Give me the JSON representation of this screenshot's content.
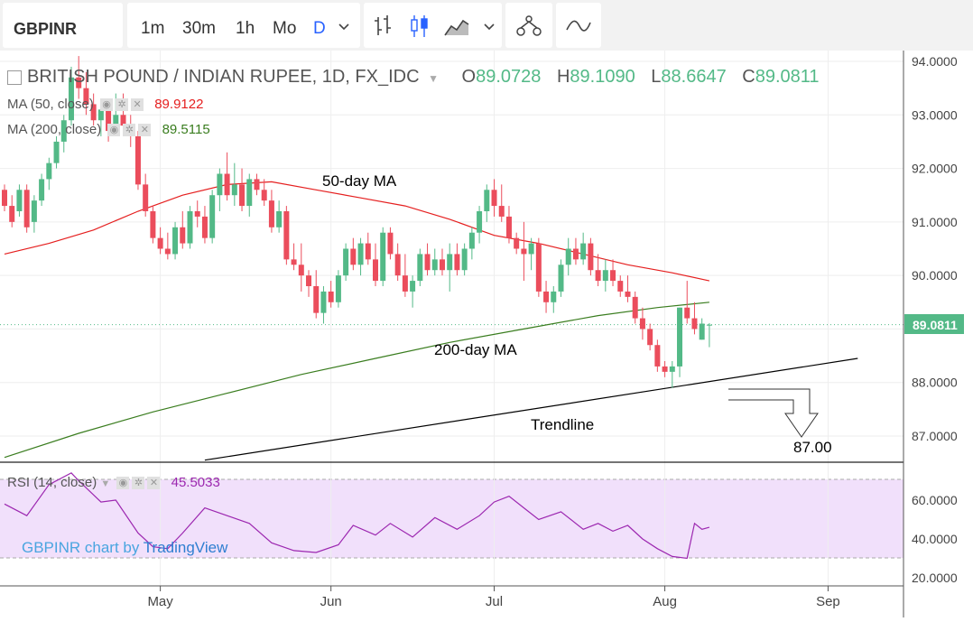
{
  "toolbar": {
    "symbol": "GBPINR",
    "intervals": [
      "1m",
      "30m",
      "1h",
      "Mo",
      "D"
    ],
    "active_interval": "D",
    "icons": [
      "chevron-down-icon",
      "bars-icon",
      "candles-icon",
      "area-icon",
      "chevron-down-icon",
      "indicators-icon",
      "compare-icon"
    ]
  },
  "header": {
    "title": "BRITISH POUND / INDIAN RUPEE, 1D, FX_IDC",
    "o_label": "O",
    "o_value": "89.0728",
    "h_label": "H",
    "h_value": "89.1090",
    "l_label": "L",
    "l_value": "88.6647",
    "c_label": "C",
    "c_value": "89.0811"
  },
  "legend": {
    "ma50_label": "MA (50, close)",
    "ma50_value": "89.9122",
    "ma200_label": "MA (200, close)",
    "ma200_value": "89.5115",
    "rsi_label": "RSI (14, close)",
    "rsi_value": "45.5033"
  },
  "watermark": {
    "prefix": "GBPINR chart by ",
    "brand": "TradingView"
  },
  "annotations": {
    "ma50": "50-day MA",
    "ma200": "200-day MA",
    "trendline": "Trendline",
    "target": "87.00"
  },
  "colors": {
    "up": "#53b987",
    "down": "#eb4d5c",
    "ma50": "#e51f1f",
    "ma200": "#3a7d1f",
    "rsi": "#9c27b0",
    "rsi_band": "#f1e0fb",
    "price_label": "#53b987",
    "accent": "#2962ff"
  },
  "chart_data": [
    {
      "type": "candlestick",
      "title": "BRITISH POUND / INDIAN RUPEE, 1D, FX_IDC",
      "y_ticks": [
        "94.0000",
        "93.0000",
        "92.0000",
        "91.0000",
        "90.0000",
        "89.0000",
        "88.0000",
        "87.0000"
      ],
      "ylim": [
        86.55,
        94.2
      ],
      "x_ticks": [
        {
          "label": "May",
          "index": 21
        },
        {
          "label": "Jun",
          "index": 44
        },
        {
          "label": "Jul",
          "index": 66
        },
        {
          "label": "Aug",
          "index": 89
        },
        {
          "label": "Sep",
          "index": 111
        }
      ],
      "last_price": "89.0811",
      "candles": [
        [
          91.6,
          91.7,
          91.2,
          91.3
        ],
        [
          91.3,
          91.5,
          90.9,
          91.0
        ],
        [
          91.2,
          91.7,
          91.1,
          91.6
        ],
        [
          91.6,
          91.7,
          90.8,
          90.9
        ],
        [
          91.0,
          91.5,
          90.8,
          91.4
        ],
        [
          91.4,
          91.9,
          91.3,
          91.8
        ],
        [
          91.8,
          92.2,
          91.6,
          92.1
        ],
        [
          92.1,
          92.6,
          92.0,
          92.5
        ],
        [
          92.5,
          93.0,
          92.3,
          92.9
        ],
        [
          92.9,
          93.9,
          92.8,
          93.7
        ],
        [
          93.7,
          94.1,
          93.3,
          93.5
        ],
        [
          93.5,
          93.8,
          93.0,
          93.2
        ],
        [
          93.2,
          93.4,
          92.8,
          92.9
        ],
        [
          92.9,
          93.2,
          92.6,
          93.1
        ],
        [
          93.1,
          93.3,
          92.5,
          92.7
        ],
        [
          92.7,
          93.4,
          92.6,
          93.0
        ],
        [
          93.0,
          93.4,
          92.8,
          92.8
        ],
        [
          92.8,
          93.0,
          92.4,
          92.6
        ],
        [
          92.6,
          92.7,
          91.6,
          91.7
        ],
        [
          91.7,
          91.9,
          91.1,
          91.2
        ],
        [
          91.2,
          91.3,
          90.6,
          90.7
        ],
        [
          90.7,
          90.9,
          90.4,
          90.5
        ],
        [
          90.5,
          90.8,
          90.3,
          90.4
        ],
        [
          90.4,
          91.0,
          90.3,
          90.9
        ],
        [
          90.9,
          91.2,
          90.5,
          90.6
        ],
        [
          90.6,
          91.3,
          90.5,
          91.2
        ],
        [
          91.2,
          91.4,
          90.9,
          91.1
        ],
        [
          91.1,
          91.3,
          90.6,
          90.7
        ],
        [
          90.7,
          91.6,
          90.6,
          91.5
        ],
        [
          91.5,
          92.0,
          91.2,
          91.9
        ],
        [
          91.9,
          92.3,
          91.4,
          91.5
        ],
        [
          91.5,
          92.1,
          91.3,
          91.7
        ],
        [
          91.7,
          92.0,
          91.2,
          91.3
        ],
        [
          91.3,
          91.9,
          91.1,
          91.8
        ],
        [
          91.8,
          91.9,
          91.5,
          91.6
        ],
        [
          91.6,
          91.8,
          91.3,
          91.4
        ],
        [
          91.4,
          91.6,
          90.8,
          90.9
        ],
        [
          90.9,
          91.4,
          90.8,
          91.2
        ],
        [
          91.2,
          91.3,
          90.2,
          90.3
        ],
        [
          90.3,
          90.6,
          90.1,
          90.2
        ],
        [
          90.2,
          90.6,
          89.7,
          90.0
        ],
        [
          90.0,
          90.1,
          89.6,
          89.8
        ],
        [
          89.8,
          90.1,
          89.2,
          89.3
        ],
        [
          89.3,
          89.8,
          89.1,
          89.7
        ],
        [
          89.7,
          89.9,
          89.4,
          89.5
        ],
        [
          89.5,
          90.1,
          89.4,
          90.0
        ],
        [
          90.0,
          90.6,
          89.9,
          90.5
        ],
        [
          90.5,
          90.7,
          90.1,
          90.2
        ],
        [
          90.2,
          90.7,
          90.0,
          90.6
        ],
        [
          90.6,
          90.8,
          90.2,
          90.3
        ],
        [
          90.3,
          90.6,
          89.8,
          89.9
        ],
        [
          89.9,
          90.9,
          89.8,
          90.8
        ],
        [
          90.8,
          90.9,
          90.3,
          90.4
        ],
        [
          90.4,
          90.6,
          89.9,
          90.0
        ],
        [
          90.0,
          90.4,
          89.6,
          89.7
        ],
        [
          89.7,
          90.0,
          89.4,
          89.9
        ],
        [
          89.9,
          90.5,
          89.8,
          90.4
        ],
        [
          90.4,
          90.6,
          90.0,
          90.1
        ],
        [
          90.1,
          90.5,
          90.0,
          90.3
        ],
        [
          90.3,
          90.5,
          90.0,
          90.1
        ],
        [
          90.1,
          90.6,
          89.7,
          90.4
        ],
        [
          90.4,
          90.6,
          90.0,
          90.1
        ],
        [
          90.1,
          90.6,
          90.0,
          90.5
        ],
        [
          90.5,
          90.9,
          90.3,
          90.8
        ],
        [
          90.8,
          91.3,
          90.6,
          91.2
        ],
        [
          91.2,
          91.7,
          91.0,
          91.6
        ],
        [
          91.6,
          91.8,
          91.1,
          91.3
        ],
        [
          91.3,
          91.7,
          91.0,
          91.1
        ],
        [
          91.1,
          91.3,
          90.6,
          90.7
        ],
        [
          90.7,
          90.8,
          90.4,
          90.5
        ],
        [
          90.5,
          91.0,
          89.9,
          90.4
        ],
        [
          90.4,
          90.7,
          90.1,
          90.6
        ],
        [
          90.6,
          90.7,
          89.6,
          89.7
        ],
        [
          89.7,
          89.9,
          89.3,
          89.5
        ],
        [
          89.5,
          89.8,
          89.3,
          89.7
        ],
        [
          89.7,
          90.3,
          89.6,
          90.2
        ],
        [
          90.2,
          90.7,
          90.0,
          90.5
        ],
        [
          90.5,
          90.7,
          90.2,
          90.3
        ],
        [
          90.3,
          90.8,
          90.2,
          90.6
        ],
        [
          90.6,
          90.7,
          90.0,
          90.1
        ],
        [
          90.1,
          90.4,
          89.8,
          89.9
        ],
        [
          89.9,
          90.3,
          89.7,
          90.1
        ],
        [
          90.1,
          90.3,
          89.8,
          89.9
        ],
        [
          89.9,
          90.0,
          89.6,
          89.7
        ],
        [
          89.7,
          90.0,
          89.5,
          89.6
        ],
        [
          89.6,
          89.7,
          89.1,
          89.2
        ],
        [
          89.2,
          89.4,
          88.8,
          89.0
        ],
        [
          89.0,
          89.1,
          88.6,
          88.7
        ],
        [
          88.7,
          88.8,
          88.2,
          88.3
        ],
        [
          88.3,
          88.4,
          88.1,
          88.2
        ],
        [
          88.2,
          88.4,
          87.9,
          88.3
        ],
        [
          88.3,
          89.4,
          88.1,
          89.4
        ],
        [
          89.4,
          89.9,
          89.1,
          89.2
        ],
        [
          89.2,
          89.5,
          88.9,
          89.0
        ],
        [
          88.8,
          89.2,
          88.8,
          89.1
        ],
        [
          89.07,
          89.11,
          88.66,
          89.08
        ]
      ]
    },
    {
      "type": "line",
      "series": [
        {
          "name": "MA (50, close)",
          "x": [
            0,
            6,
            12,
            18,
            24,
            30,
            36,
            42,
            48,
            54,
            60,
            66,
            72,
            78,
            84,
            90,
            95
          ],
          "y": [
            90.4,
            90.6,
            90.85,
            91.2,
            91.5,
            91.7,
            91.75,
            91.6,
            91.45,
            91.3,
            91.05,
            90.75,
            90.6,
            90.4,
            90.2,
            90.05,
            89.9
          ]
        },
        {
          "name": "MA (200, close)",
          "x": [
            0,
            10,
            20,
            30,
            40,
            50,
            60,
            70,
            80,
            88,
            95
          ],
          "y": [
            86.6,
            87.05,
            87.45,
            87.8,
            88.15,
            88.45,
            88.75,
            89.0,
            89.25,
            89.4,
            89.5
          ]
        },
        {
          "name": "Trendline",
          "x": [
            27,
            115
          ],
          "y": [
            86.55,
            88.45
          ]
        }
      ]
    },
    {
      "type": "line",
      "title": "RSI (14, close)",
      "y_ticks": [
        "60.0000",
        "40.0000",
        "20.0000"
      ],
      "ylim": [
        17,
        75
      ],
      "band": [
        30,
        70
      ],
      "series": [
        {
          "name": "RSI (14, close)",
          "x": [
            0,
            3,
            6,
            9,
            10,
            13,
            15,
            18,
            20,
            22,
            24,
            27,
            30,
            33,
            36,
            39,
            42,
            45,
            47,
            50,
            52,
            55,
            58,
            61,
            64,
            66,
            68,
            70,
            72,
            75,
            78,
            80,
            82,
            84,
            86,
            88,
            90,
            92,
            93,
            94,
            95
          ],
          "y": [
            58,
            52,
            68,
            74,
            70,
            59,
            60,
            43,
            36,
            35,
            43,
            56,
            52,
            48,
            38,
            34,
            33,
            37,
            47,
            42,
            48,
            41,
            51,
            45,
            52,
            59,
            62,
            56,
            50,
            54,
            45,
            48,
            44,
            47,
            40,
            35,
            31,
            30,
            48,
            45,
            46
          ]
        }
      ]
    }
  ]
}
